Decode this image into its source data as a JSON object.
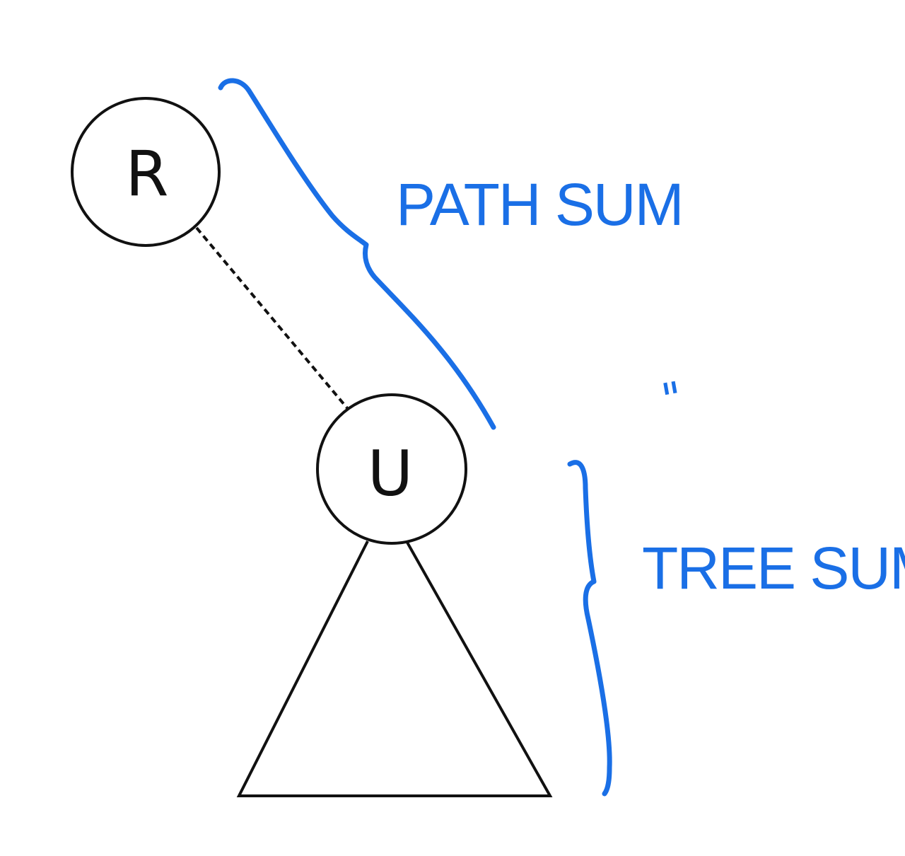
{
  "diagram": {
    "nodes": [
      {
        "id": "root",
        "label": "R"
      },
      {
        "id": "u",
        "label": "U"
      }
    ],
    "edges": [
      {
        "from": "root",
        "to": "u",
        "style": "dashed"
      }
    ],
    "subtree": {
      "root": "u",
      "shape": "triangle"
    },
    "annotations": {
      "path_sum": "PATH SUM",
      "equals": "\"",
      "tree_sum": "TREE SUM"
    },
    "colors": {
      "ink": "#111111",
      "annotation": "#1a6fe6",
      "background": "#ffffff"
    }
  }
}
